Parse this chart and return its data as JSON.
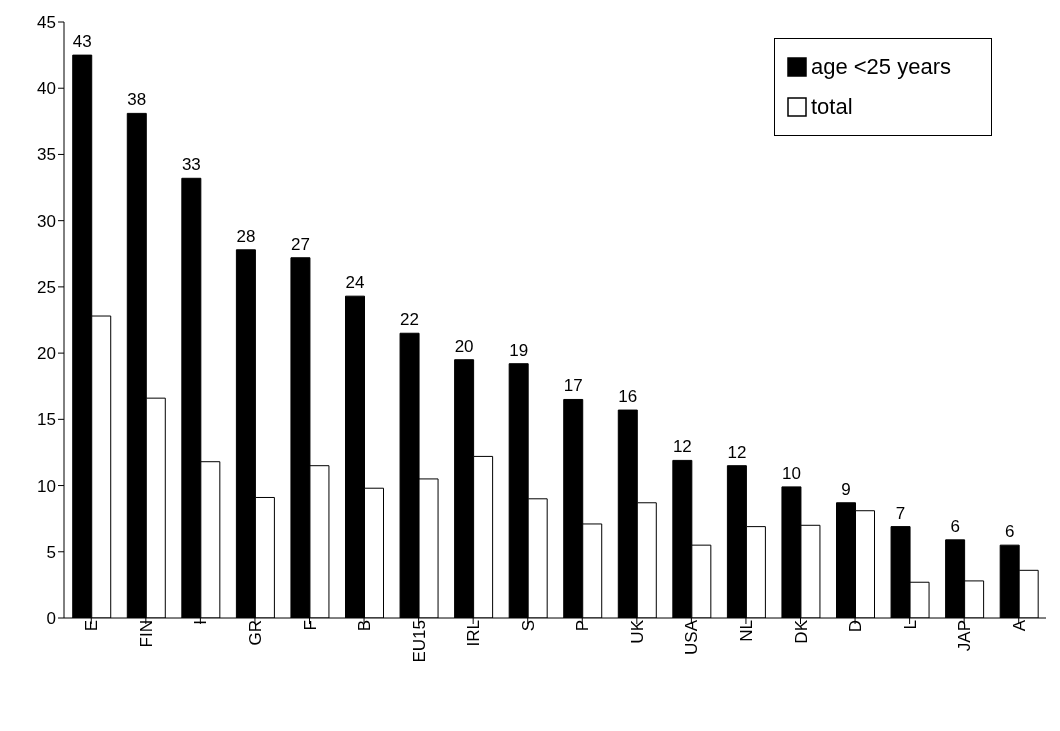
{
  "chart_data": {
    "type": "bar",
    "categories": [
      "E",
      "FIN",
      "I",
      "GR",
      "F",
      "B",
      "EU15",
      "IRL",
      "S",
      "P",
      "UK",
      "USA",
      "NL",
      "DK",
      "D",
      "L",
      "JAP",
      "A"
    ],
    "series": [
      {
        "name": "age <25 years",
        "color": "#000000",
        "values": [
          42.5,
          38.1,
          33.2,
          27.8,
          27.2,
          24.3,
          21.5,
          19.5,
          19.2,
          16.5,
          15.7,
          11.9,
          11.5,
          9.9,
          8.7,
          6.9,
          5.9,
          5.5
        ],
        "value_labels": [
          "43",
          "38",
          "33",
          "28",
          "27",
          "24",
          "22",
          "20",
          "19",
          "17",
          "16",
          "12",
          "12",
          "10",
          "9",
          "7",
          "6",
          "6"
        ]
      },
      {
        "name": "total",
        "color": "#ffffff",
        "values": [
          22.8,
          16.6,
          11.8,
          9.1,
          11.5,
          9.8,
          10.5,
          12.2,
          9.0,
          7.1,
          8.7,
          5.5,
          6.9,
          7.0,
          8.1,
          2.7,
          2.8,
          3.6
        ]
      }
    ],
    "ylim": [
      0,
      45
    ],
    "yticks": [
      0,
      5,
      10,
      15,
      20,
      25,
      30,
      35,
      40,
      45
    ],
    "legend": "top right"
  }
}
